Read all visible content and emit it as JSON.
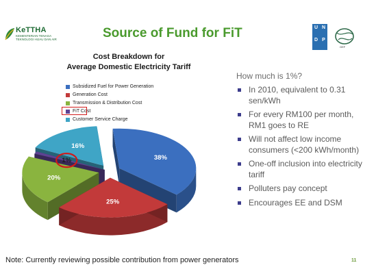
{
  "header": {
    "logo_name": "KeTTHA",
    "logo_subtext": "KEMENTERIAN TENAGA TEKNOLOGI HIJAU DAN AIR",
    "title": "Source of Fund for FiT",
    "undp_letters": [
      "U",
      "N",
      "D",
      "P"
    ],
    "gef_label": "GEF"
  },
  "chart_data": {
    "type": "pie",
    "title": "Cost Breakdown for Average Domestic Electricity Tariff",
    "title_lines": [
      "Cost Breakdown for",
      "Average Domestic Electricity Tariff"
    ],
    "categories": [
      "Subsidized Fuel for Power Generation",
      "Generation Cost",
      "Transmission & Distribution Cost",
      "FiT Cost",
      "Customer Service Charge"
    ],
    "values": [
      38,
      25,
      20,
      1,
      16
    ],
    "value_labels": [
      "38%",
      "25%",
      "20%",
      "1%",
      "16%"
    ],
    "colors": [
      "#3b6fbf",
      "#c23a3a",
      "#8ab43f",
      "#5e4393",
      "#3fa5c6"
    ],
    "highlighted": "FiT Cost",
    "legend_position": "top-right"
  },
  "bullets": {
    "question": "How much is 1%?",
    "items": [
      "In 2010, equivalent to 0.31 sen/kWh",
      "For every RM100 per month, RM1 goes to RE",
      "Will not affect low income consumers (<200 kWh/month)",
      "One-off inclusion into electricity tariff",
      "Polluters pay concept",
      "Encourages EE and DSM"
    ]
  },
  "footer": {
    "note": "Note: Currently reviewing possible contribution from power generators",
    "page_number": "11"
  }
}
